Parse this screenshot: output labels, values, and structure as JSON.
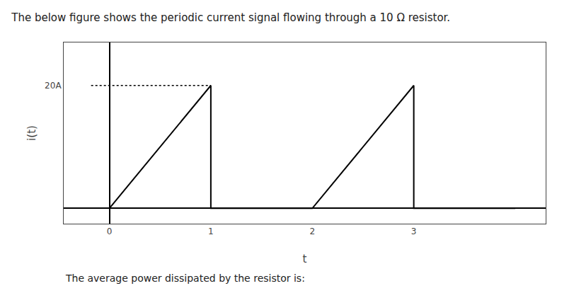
{
  "chart_data": {
    "type": "line",
    "title": "The below figure shows the periodic current signal flowing through a 10 Ω resistor.",
    "annotations": [
      "The average power dissipated by the resistor is:"
    ],
    "x_label": "t",
    "y_label": "i(t)",
    "x": [
      0,
      1,
      1,
      2,
      3,
      3,
      4.0
    ],
    "values": [
      0,
      20,
      0,
      0,
      20,
      0,
      0
    ],
    "color": "#000000",
    "line_style": "solid",
    "guides": [
      {
        "x": [
          -0.18,
          1.0
        ],
        "y": [
          20,
          20
        ],
        "color": "#000000",
        "line_style": "dotted"
      }
    ],
    "xlim": [
      -0.45,
      4.3
    ],
    "ylim": [
      -2.5,
      27
    ],
    "xticks": [
      0,
      1,
      2,
      3
    ],
    "yticks": [
      {
        "value": 20,
        "label": "20A"
      }
    ],
    "grid": false
  }
}
